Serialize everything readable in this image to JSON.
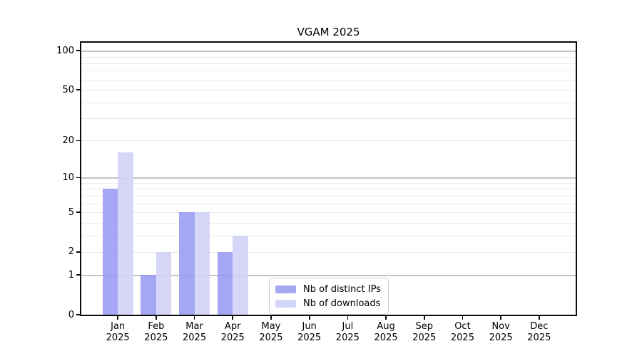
{
  "figure": {
    "background": "#ffffff",
    "spine_color": "#0a0a0a"
  },
  "chart_data": {
    "type": "bar",
    "title": "VGAM 2025",
    "xlabel": "",
    "ylabel": "",
    "categories": [
      "Jan 2025",
      "Feb 2025",
      "Mar 2025",
      "Apr 2025",
      "May 2025",
      "Jun 2025",
      "Jul 2025",
      "Aug 2025",
      "Sep 2025",
      "Oct 2025",
      "Nov 2025",
      "Dec 2025"
    ],
    "series": [
      {
        "name": "Nb of distinct IPs",
        "values": [
          8,
          1,
          5,
          2,
          0,
          0,
          0,
          0,
          0,
          0,
          0,
          0
        ],
        "color": "rgba(150,151,242,0.86)",
        "legend_color": "#a6a7f1"
      },
      {
        "name": "Nb of downloads",
        "values": [
          16,
          2,
          5,
          3,
          0,
          0,
          0,
          0,
          0,
          0,
          0,
          0
        ],
        "color": "rgba(209,211,247,0.9)",
        "legend_color": "#d5d7f8"
      }
    ],
    "yscale": "log1p",
    "ylim": [
      0,
      115
    ],
    "xlim": [
      -0.99,
      11.99
    ],
    "bar_width": 0.4,
    "y_ticks": [
      0,
      1,
      2,
      5,
      10,
      20,
      50,
      100
    ],
    "gridlines": {
      "major": [
        1,
        10,
        100
      ],
      "minor": [
        2,
        3,
        4,
        5,
        6,
        7,
        8,
        9,
        20,
        30,
        40,
        50,
        60,
        70,
        80,
        90
      ],
      "major_color": "#c4c4c4",
      "minor_color": "#eaeaea"
    },
    "grid": true,
    "legend_position": "lower center"
  },
  "legend": {
    "items": [
      {
        "label": "Nb of distinct IPs",
        "color": "#a6a7f1"
      },
      {
        "label": "Nb of downloads",
        "color": "#d5d7f8"
      }
    ]
  }
}
